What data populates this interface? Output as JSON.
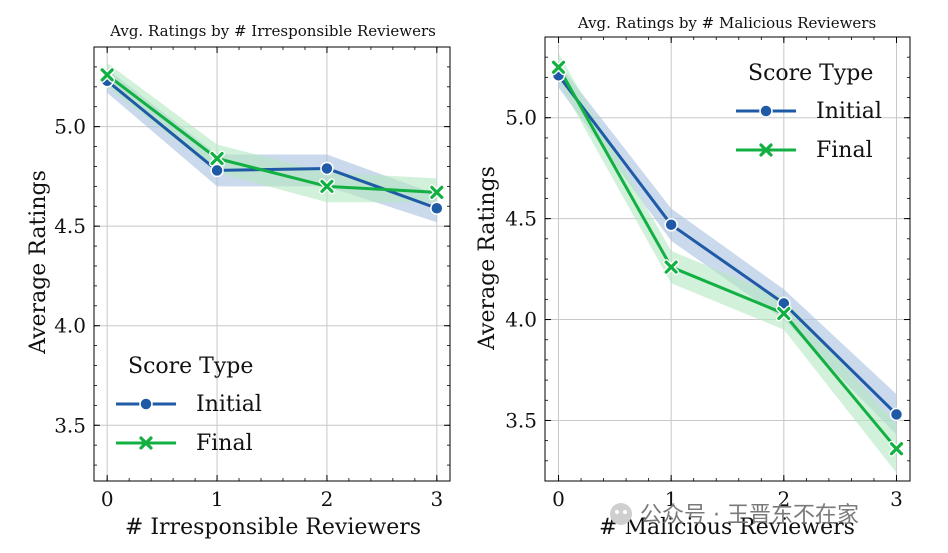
{
  "chart_data": [
    {
      "type": "line",
      "title": "Avg. Ratings by # Irresponsible Reviewers",
      "xlabel": "# Irresponsible Reviewers",
      "ylabel": "Average Ratings",
      "x": [
        0,
        1,
        2,
        3
      ],
      "x_ticks": [
        "0",
        "1",
        "2",
        "3"
      ],
      "xlim": [
        -0.12,
        3.12
      ],
      "y_ticks": [
        "3.5",
        "4.0",
        "4.5",
        "5.0"
      ],
      "y_tick_values": [
        3.5,
        4.0,
        4.5,
        5.0
      ],
      "ylim": [
        3.22,
        5.4
      ],
      "grid": true,
      "legend": {
        "title": "Score Type",
        "location": "lower-left"
      },
      "series": [
        {
          "name": "Initial",
          "color": "#1f5aa6",
          "band_color": "#a8bfe0",
          "marker": "circle",
          "values": [
            5.23,
            4.78,
            4.79,
            4.59
          ],
          "ci_low": [
            5.17,
            4.7,
            4.7,
            4.52
          ],
          "ci_high": [
            5.29,
            4.86,
            4.86,
            4.66
          ]
        },
        {
          "name": "Final",
          "color": "#12b043",
          "band_color": "#b4e8c2",
          "marker": "x",
          "values": [
            5.26,
            4.84,
            4.7,
            4.67
          ],
          "ci_low": [
            5.2,
            4.77,
            4.62,
            4.62
          ],
          "ci_high": [
            5.32,
            4.91,
            4.77,
            4.74
          ]
        }
      ]
    },
    {
      "type": "line",
      "title": "Avg. Ratings by # Malicious Reviewers",
      "xlabel": "# Malicious Reviewers",
      "ylabel": "Average Ratings",
      "x": [
        0,
        1,
        2,
        3
      ],
      "x_ticks": [
        "0",
        "1",
        "2",
        "3"
      ],
      "xlim": [
        -0.12,
        3.12
      ],
      "y_ticks": [
        "3.5",
        "4.0",
        "4.5",
        "5.0"
      ],
      "y_tick_values": [
        3.5,
        4.0,
        4.5,
        5.0
      ],
      "ylim": [
        3.2,
        5.4
      ],
      "grid": true,
      "legend": {
        "title": "Score Type",
        "location": "top-right"
      },
      "series": [
        {
          "name": "Initial",
          "color": "#1f5aa6",
          "band_color": "#a8bfe0",
          "marker": "circle",
          "values": [
            5.21,
            4.47,
            4.08,
            3.53
          ],
          "ci_low": [
            5.15,
            4.39,
            4.0,
            3.43
          ],
          "ci_high": [
            5.27,
            4.55,
            4.15,
            3.63
          ]
        },
        {
          "name": "Final",
          "color": "#12b043",
          "band_color": "#b4e8c2",
          "marker": "x",
          "values": [
            5.25,
            4.26,
            4.03,
            3.36
          ],
          "ci_low": [
            5.18,
            4.18,
            3.95,
            3.24
          ],
          "ci_high": [
            5.32,
            4.34,
            4.11,
            3.48
          ]
        }
      ]
    }
  ],
  "watermark": "公众号 · 王晋东不在家"
}
